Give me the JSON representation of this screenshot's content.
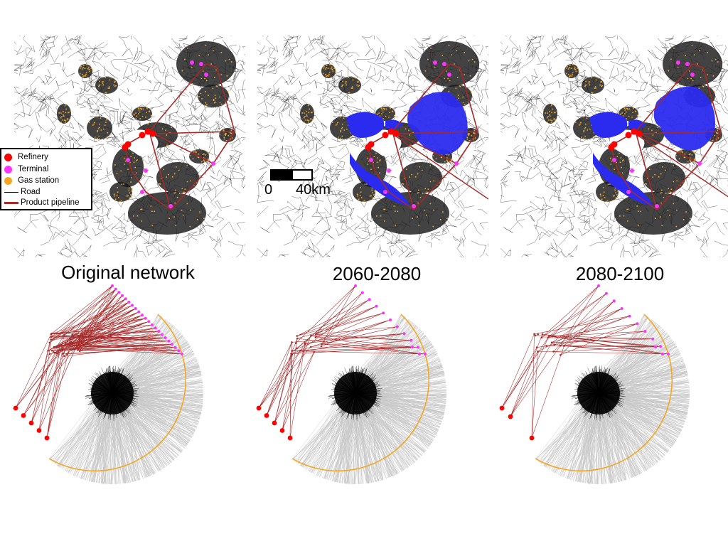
{
  "panels": [
    {
      "label": "Original network",
      "inundation": "none",
      "terminals": 22,
      "refineries": 5
    },
    {
      "label": "2060-2080",
      "inundation": "partial",
      "terminals": 11,
      "refineries": 5
    },
    {
      "label": "2080-2100",
      "inundation": "extended",
      "terminals": 10,
      "refineries": 3
    }
  ],
  "legend": {
    "items": [
      {
        "label": "Refinery",
        "kind": "dot",
        "color": "#ff0000"
      },
      {
        "label": "Terminal",
        "kind": "dot",
        "color": "#ff33ff"
      },
      {
        "label": "Gas station",
        "kind": "dot",
        "color": "#f5a623"
      },
      {
        "label": "Road",
        "kind": "line",
        "color": "#000000"
      },
      {
        "label": "Product pipeline",
        "kind": "thick-line",
        "color": "#a52a2a"
      }
    ]
  },
  "scalebar": {
    "start_label": "0",
    "end_label": "40km"
  },
  "colors": {
    "refinery": "#ff0000",
    "terminal": "#ff33ff",
    "gas_station": "#f5a623",
    "road": "#000000",
    "pipeline": "#a52a2a",
    "flood": "#2b2bf0",
    "fan": "#c8c8c8",
    "arc": "#f5a623"
  }
}
